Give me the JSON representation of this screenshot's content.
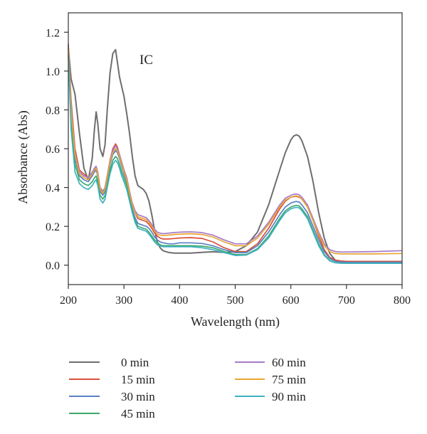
{
  "chart_data": {
    "type": "line",
    "xlabel": "Wavelength (nm)",
    "ylabel": "Absorbance (Abs)",
    "xlim": [
      200,
      800
    ],
    "ylim": [
      -0.1,
      1.3
    ],
    "xticks": [
      "200",
      "300",
      "400",
      "500",
      "600",
      "700",
      "800"
    ],
    "yticks": [
      "0.0",
      "0.2",
      "0.4",
      "0.6",
      "0.8",
      "1.0",
      "1.2"
    ],
    "annotation": "IC",
    "grid": false,
    "legend_position": "bottom",
    "series": [
      {
        "name": "0 min",
        "color": "#6e6e6e",
        "x": [
          200,
          205,
          212,
          220,
          228,
          236,
          243,
          247,
          250,
          253,
          257,
          262,
          266,
          270,
          275,
          280,
          285,
          288,
          292,
          296,
          300,
          305,
          310,
          315,
          320,
          325,
          330,
          335,
          340,
          345,
          350,
          355,
          360,
          365,
          370,
          375,
          380,
          390,
          400,
          420,
          440,
          460,
          480,
          500,
          520,
          540,
          560,
          580,
          590,
          600,
          605,
          610,
          615,
          620,
          630,
          640,
          650,
          660,
          670,
          680,
          690,
          700,
          750,
          800
        ],
        "y": [
          1.12,
          0.96,
          0.88,
          0.68,
          0.5,
          0.44,
          0.55,
          0.7,
          0.79,
          0.73,
          0.6,
          0.56,
          0.62,
          0.8,
          0.99,
          1.09,
          1.11,
          1.05,
          0.97,
          0.92,
          0.87,
          0.78,
          0.68,
          0.56,
          0.46,
          0.41,
          0.4,
          0.39,
          0.37,
          0.33,
          0.26,
          0.18,
          0.12,
          0.09,
          0.075,
          0.07,
          0.066,
          0.062,
          0.062,
          0.062,
          0.066,
          0.069,
          0.066,
          0.07,
          0.1,
          0.17,
          0.31,
          0.49,
          0.58,
          0.645,
          0.665,
          0.672,
          0.665,
          0.64,
          0.56,
          0.43,
          0.27,
          0.14,
          0.06,
          0.025,
          0.013,
          0.01,
          0.01,
          0.01
        ]
      },
      {
        "name": "15 min",
        "color": "#d9503a",
        "x": [
          200,
          205,
          212,
          220,
          228,
          236,
          243,
          247,
          250,
          253,
          257,
          262,
          266,
          270,
          275,
          280,
          285,
          288,
          292,
          296,
          300,
          305,
          310,
          315,
          320,
          325,
          330,
          335,
          340,
          345,
          350,
          355,
          360,
          365,
          370,
          380,
          390,
          400,
          420,
          440,
          460,
          480,
          500,
          520,
          540,
          560,
          580,
          590,
          600,
          605,
          610,
          615,
          620,
          630,
          640,
          650,
          660,
          670,
          680,
          690,
          700,
          750,
          800
        ],
        "y": [
          1.14,
          0.85,
          0.6,
          0.49,
          0.47,
          0.45,
          0.47,
          0.49,
          0.5,
          0.47,
          0.4,
          0.38,
          0.4,
          0.46,
          0.54,
          0.6,
          0.625,
          0.61,
          0.57,
          0.53,
          0.49,
          0.45,
          0.38,
          0.31,
          0.27,
          0.24,
          0.235,
          0.23,
          0.225,
          0.21,
          0.19,
          0.165,
          0.15,
          0.14,
          0.135,
          0.135,
          0.137,
          0.14,
          0.142,
          0.138,
          0.12,
          0.09,
          0.07,
          0.07,
          0.11,
          0.19,
          0.29,
          0.33,
          0.35,
          0.353,
          0.355,
          0.35,
          0.34,
          0.3,
          0.23,
          0.15,
          0.08,
          0.04,
          0.026,
          0.022,
          0.02,
          0.02,
          0.02
        ]
      },
      {
        "name": "30 min",
        "color": "#5a7fc4",
        "x": [
          200,
          205,
          212,
          220,
          228,
          236,
          243,
          247,
          250,
          253,
          257,
          262,
          266,
          270,
          275,
          280,
          285,
          288,
          292,
          296,
          300,
          305,
          310,
          315,
          320,
          325,
          330,
          335,
          340,
          345,
          350,
          355,
          360,
          365,
          370,
          380,
          390,
          400,
          420,
          440,
          460,
          480,
          500,
          520,
          540,
          560,
          580,
          590,
          600,
          605,
          610,
          615,
          620,
          630,
          640,
          650,
          660,
          670,
          680,
          690,
          700,
          750,
          800
        ],
        "y": [
          1.13,
          0.8,
          0.55,
          0.46,
          0.44,
          0.43,
          0.46,
          0.48,
          0.49,
          0.46,
          0.38,
          0.36,
          0.38,
          0.44,
          0.52,
          0.57,
          0.59,
          0.58,
          0.55,
          0.51,
          0.47,
          0.43,
          0.36,
          0.29,
          0.245,
          0.215,
          0.21,
          0.205,
          0.2,
          0.19,
          0.17,
          0.145,
          0.13,
          0.12,
          0.115,
          0.11,
          0.11,
          0.115,
          0.115,
          0.112,
          0.1,
          0.08,
          0.065,
          0.065,
          0.1,
          0.17,
          0.26,
          0.3,
          0.32,
          0.325,
          0.328,
          0.325,
          0.31,
          0.27,
          0.2,
          0.13,
          0.07,
          0.035,
          0.02,
          0.016,
          0.015,
          0.015,
          0.015
        ]
      },
      {
        "name": "45 min",
        "color": "#3aaa6a",
        "x": [
          200,
          205,
          212,
          220,
          228,
          236,
          243,
          247,
          250,
          253,
          257,
          262,
          266,
          270,
          275,
          280,
          285,
          288,
          292,
          296,
          300,
          305,
          310,
          315,
          320,
          325,
          330,
          335,
          340,
          345,
          350,
          355,
          360,
          365,
          370,
          380,
          390,
          400,
          420,
          440,
          460,
          480,
          500,
          520,
          540,
          560,
          580,
          590,
          600,
          605,
          610,
          615,
          620,
          630,
          640,
          650,
          660,
          670,
          680,
          690,
          700,
          750,
          800
        ],
        "y": [
          1.1,
          0.75,
          0.52,
          0.44,
          0.42,
          0.41,
          0.43,
          0.45,
          0.46,
          0.43,
          0.36,
          0.34,
          0.36,
          0.42,
          0.49,
          0.54,
          0.56,
          0.55,
          0.52,
          0.48,
          0.45,
          0.41,
          0.34,
          0.28,
          0.23,
          0.2,
          0.195,
          0.19,
          0.185,
          0.17,
          0.15,
          0.13,
          0.115,
          0.105,
          0.1,
          0.1,
          0.1,
          0.1,
          0.1,
          0.098,
          0.09,
          0.07,
          0.055,
          0.055,
          0.085,
          0.15,
          0.24,
          0.28,
          0.3,
          0.305,
          0.308,
          0.305,
          0.29,
          0.25,
          0.18,
          0.11,
          0.055,
          0.025,
          0.013,
          0.011,
          0.01,
          0.01,
          0.01
        ]
      },
      {
        "name": "60 min",
        "color": "#a57ac8",
        "x": [
          200,
          205,
          212,
          220,
          228,
          236,
          243,
          247,
          250,
          253,
          257,
          262,
          266,
          270,
          275,
          280,
          285,
          288,
          292,
          296,
          300,
          305,
          310,
          315,
          320,
          325,
          330,
          335,
          340,
          345,
          350,
          355,
          360,
          365,
          370,
          380,
          390,
          400,
          420,
          440,
          460,
          480,
          500,
          520,
          540,
          560,
          580,
          590,
          600,
          605,
          610,
          615,
          620,
          630,
          640,
          650,
          660,
          670,
          680,
          690,
          700,
          750,
          800
        ],
        "y": [
          1.13,
          0.82,
          0.58,
          0.48,
          0.46,
          0.45,
          0.48,
          0.5,
          0.51,
          0.48,
          0.4,
          0.38,
          0.4,
          0.46,
          0.54,
          0.59,
          0.615,
          0.6,
          0.57,
          0.53,
          0.49,
          0.45,
          0.38,
          0.32,
          0.28,
          0.26,
          0.255,
          0.25,
          0.245,
          0.23,
          0.21,
          0.185,
          0.17,
          0.165,
          0.162,
          0.165,
          0.168,
          0.17,
          0.172,
          0.168,
          0.155,
          0.13,
          0.11,
          0.11,
          0.15,
          0.22,
          0.31,
          0.345,
          0.36,
          0.365,
          0.367,
          0.363,
          0.35,
          0.31,
          0.24,
          0.17,
          0.11,
          0.08,
          0.07,
          0.068,
          0.068,
          0.07,
          0.075
        ]
      },
      {
        "name": "75 min",
        "color": "#e8a533",
        "x": [
          200,
          205,
          212,
          220,
          228,
          236,
          243,
          247,
          250,
          253,
          257,
          262,
          266,
          270,
          275,
          280,
          285,
          288,
          292,
          296,
          300,
          305,
          310,
          315,
          320,
          325,
          330,
          335,
          340,
          345,
          350,
          355,
          360,
          365,
          370,
          380,
          390,
          400,
          420,
          440,
          460,
          480,
          500,
          520,
          540,
          560,
          580,
          590,
          600,
          605,
          610,
          615,
          620,
          630,
          640,
          650,
          660,
          670,
          680,
          690,
          700,
          750,
          800
        ],
        "y": [
          1.12,
          0.8,
          0.57,
          0.47,
          0.45,
          0.44,
          0.47,
          0.49,
          0.5,
          0.47,
          0.39,
          0.37,
          0.39,
          0.45,
          0.53,
          0.58,
          0.6,
          0.59,
          0.56,
          0.52,
          0.48,
          0.44,
          0.37,
          0.31,
          0.27,
          0.25,
          0.245,
          0.24,
          0.235,
          0.22,
          0.2,
          0.175,
          0.16,
          0.155,
          0.152,
          0.155,
          0.158,
          0.16,
          0.162,
          0.158,
          0.145,
          0.12,
          0.1,
          0.1,
          0.14,
          0.21,
          0.3,
          0.335,
          0.35,
          0.355,
          0.357,
          0.353,
          0.34,
          0.3,
          0.23,
          0.16,
          0.1,
          0.07,
          0.06,
          0.058,
          0.058,
          0.058,
          0.06
        ]
      },
      {
        "name": "90 min",
        "color": "#3fb1c1",
        "x": [
          200,
          205,
          212,
          220,
          228,
          236,
          243,
          247,
          250,
          253,
          257,
          262,
          266,
          270,
          275,
          280,
          285,
          288,
          292,
          296,
          300,
          305,
          310,
          315,
          320,
          325,
          330,
          335,
          340,
          345,
          350,
          355,
          360,
          365,
          370,
          380,
          390,
          400,
          420,
          440,
          460,
          480,
          500,
          520,
          540,
          560,
          580,
          590,
          600,
          605,
          610,
          615,
          620,
          630,
          640,
          650,
          660,
          670,
          680,
          690,
          700,
          750,
          800
        ],
        "y": [
          1.08,
          0.7,
          0.48,
          0.42,
          0.4,
          0.39,
          0.41,
          0.43,
          0.44,
          0.41,
          0.34,
          0.32,
          0.34,
          0.4,
          0.47,
          0.52,
          0.54,
          0.53,
          0.5,
          0.46,
          0.43,
          0.39,
          0.33,
          0.27,
          0.22,
          0.19,
          0.185,
          0.18,
          0.175,
          0.16,
          0.14,
          0.12,
          0.105,
          0.1,
          0.095,
          0.095,
          0.095,
          0.095,
          0.095,
          0.09,
          0.08,
          0.065,
          0.05,
          0.052,
          0.08,
          0.14,
          0.23,
          0.27,
          0.29,
          0.295,
          0.298,
          0.295,
          0.28,
          0.24,
          0.17,
          0.1,
          0.05,
          0.022,
          0.012,
          0.01,
          0.01,
          0.01,
          0.01
        ]
      }
    ]
  }
}
